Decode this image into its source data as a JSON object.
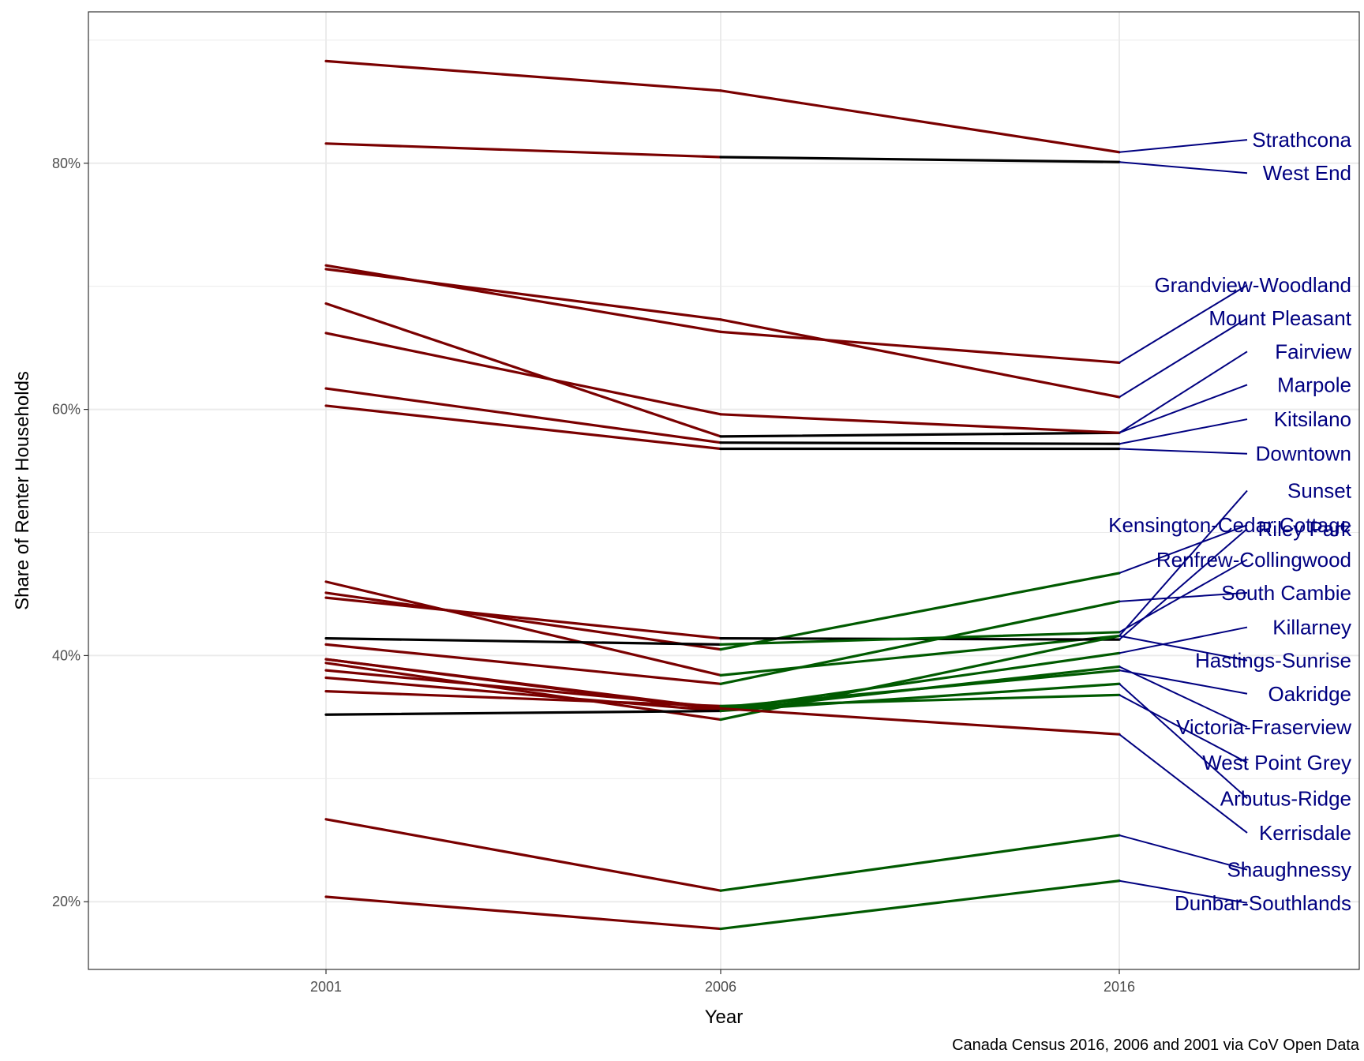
{
  "chart_data": {
    "type": "line",
    "title": "",
    "xlabel": "Year",
    "ylabel": "Share of Renter Households",
    "caption": "Canada Census 2016, 2006 and 2001 via CoV Open Data",
    "x": [
      "2001",
      "2006",
      "2016"
    ],
    "y_ticks": [
      "20%",
      "40%",
      "60%",
      "80%"
    ],
    "y_tick_values": [
      20,
      40,
      60,
      80
    ],
    "ylim": [
      14.5,
      92.3
    ],
    "grid": true,
    "colors": {
      "decrease": "#7a0000",
      "increase": "#005a00",
      "flat": "#000000",
      "label": "#000080"
    },
    "series": [
      {
        "name": "Strathcona",
        "values": [
          88.3,
          85.9,
          80.9
        ],
        "label_y": 81.9
      },
      {
        "name": "West End",
        "values": [
          81.6,
          80.5,
          80.1
        ],
        "label_y": 79.2
      },
      {
        "name": "Grandview-Woodland",
        "values": [
          71.7,
          66.3,
          63.8
        ],
        "label_y": 70.1
      },
      {
        "name": "Mount Pleasant",
        "values": [
          71.4,
          67.3,
          61.0
        ],
        "label_y": 67.4
      },
      {
        "name": "Fairview",
        "values": [
          68.6,
          57.8,
          58.1
        ],
        "label_y": 64.7
      },
      {
        "name": "Marpole",
        "values": [
          66.2,
          59.6,
          58.1
        ],
        "label_y": 62.0
      },
      {
        "name": "Kitsilano",
        "values": [
          61.7,
          57.3,
          57.2
        ],
        "label_y": 59.2
      },
      {
        "name": "Downtown",
        "values": [
          60.3,
          56.8,
          56.8
        ],
        "label_y": 56.4
      },
      {
        "name": "Sunset",
        "values": [
          46.0,
          38.4,
          41.6
        ],
        "label_y": 53.4
      },
      {
        "name": "Kensington-Cedar Cottage",
        "values": [
          45.1,
          40.5,
          46.7
        ],
        "label_y": 50.6
      },
      {
        "name": "Riley Park",
        "values": [
          44.7,
          41.4,
          41.3
        ],
        "label_y": 50.3
      },
      {
        "name": "Renfrew-Collingwood",
        "values": [
          41.4,
          40.9,
          41.9
        ],
        "label_y": 47.8
      },
      {
        "name": "South Cambie",
        "values": [
          40.9,
          37.7,
          44.4
        ],
        "label_y": 45.1
      },
      {
        "name": "Killarney",
        "values": [
          39.7,
          35.6,
          40.2
        ],
        "label_y": 42.3
      },
      {
        "name": "Hastings-Sunrise",
        "values": [
          39.4,
          34.8,
          41.6
        ],
        "label_y": 39.6
      },
      {
        "name": "Oakridge",
        "values": [
          38.8,
          35.8,
          38.8
        ],
        "label_y": 36.9
      },
      {
        "name": "Victoria-Fraserview",
        "values": [
          38.2,
          35.5,
          39.1
        ],
        "label_y": 34.2
      },
      {
        "name": "West Point Grey",
        "values": [
          37.1,
          35.9,
          36.8
        ],
        "label_y": 31.3
      },
      {
        "name": "Arbutus-Ridge",
        "values": [
          35.2,
          35.5,
          37.7
        ],
        "label_y": 28.4
      },
      {
        "name": "Kerrisdale",
        "values": [
          39.7,
          35.7,
          33.6
        ],
        "label_y": 25.6
      },
      {
        "name": "Shaughnessy",
        "values": [
          26.7,
          20.9,
          25.4
        ],
        "label_y": 22.6
      },
      {
        "name": "Dunbar-Southlands",
        "values": [
          20.4,
          17.8,
          21.7
        ],
        "label_y": 19.9
      }
    ]
  }
}
